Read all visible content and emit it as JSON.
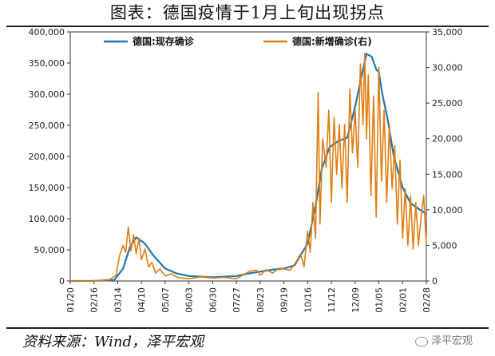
{
  "title": "图表：德国疫情于1月上旬出现拐点",
  "source": "资料来源：Wind，泽平宏观",
  "watermark": "泽平宏观",
  "colors": {
    "active": "#1f77b4",
    "new": "#e07d10",
    "axis": "#333333"
  },
  "chart_data": {
    "type": "line",
    "x_ticks": [
      "01/20",
      "02/16",
      "03/14",
      "04/10",
      "05/07",
      "06/03",
      "06/30",
      "07/27",
      "08/23",
      "09/19",
      "10/16",
      "11/12",
      "12/09",
      "01/05",
      "02/01",
      "02/28"
    ],
    "y_left": {
      "ticks": [
        0,
        50000,
        100000,
        150000,
        200000,
        250000,
        300000,
        350000,
        400000
      ],
      "tick_labels": [
        "0",
        "50,000",
        "100,000",
        "150,000",
        "200,000",
        "250,000",
        "300,000",
        "350,000",
        "400,000"
      ],
      "lim": [
        0,
        400000
      ]
    },
    "y_right": {
      "ticks": [
        0,
        5000,
        10000,
        15000,
        20000,
        25000,
        30000,
        35000
      ],
      "tick_labels": [
        "0",
        "5,000",
        "10,000",
        "15,000",
        "20,000",
        "25,000",
        "30,000",
        "35,000"
      ],
      "lim": [
        0,
        35000
      ]
    },
    "legend": {
      "placement": "top"
    },
    "series": [
      {
        "name": "德国:现存确诊",
        "axis": "left",
        "x": [
          "2020-01-20",
          "2020-02-16",
          "2020-03-10",
          "2020-03-20",
          "2020-03-28",
          "2020-04-04",
          "2020-04-14",
          "2020-04-24",
          "2020-05-07",
          "2020-05-20",
          "2020-06-03",
          "2020-06-30",
          "2020-07-27",
          "2020-08-10",
          "2020-08-23",
          "2020-09-05",
          "2020-09-19",
          "2020-10-01",
          "2020-10-16",
          "2020-10-25",
          "2020-11-01",
          "2020-11-10",
          "2020-11-20",
          "2020-11-30",
          "2020-12-09",
          "2020-12-15",
          "2020-12-22",
          "2020-12-28",
          "2021-01-02",
          "2021-01-05",
          "2021-01-09",
          "2021-01-15",
          "2021-01-22",
          "2021-02-01",
          "2021-02-10",
          "2021-02-20",
          "2021-02-28"
        ],
        "values": [
          0,
          100,
          1500,
          20000,
          55000,
          70000,
          60000,
          40000,
          20000,
          12000,
          8000,
          6000,
          8000,
          12000,
          15000,
          18000,
          20000,
          25000,
          60000,
          120000,
          180000,
          215000,
          225000,
          230000,
          280000,
          320000,
          365000,
          360000,
          340000,
          335000,
          300000,
          260000,
          200000,
          150000,
          125000,
          115000,
          108000
        ]
      },
      {
        "name": "德国:新增确诊(右)",
        "axis": "right",
        "x": [
          "2020-01-20",
          "2020-02-16",
          "2020-03-05",
          "2020-03-12",
          "2020-03-16",
          "2020-03-20",
          "2020-03-23",
          "2020-03-26",
          "2020-03-29",
          "2020-04-01",
          "2020-04-04",
          "2020-04-07",
          "2020-04-10",
          "2020-04-14",
          "2020-04-18",
          "2020-04-22",
          "2020-04-26",
          "2020-05-01",
          "2020-05-07",
          "2020-05-14",
          "2020-05-21",
          "2020-06-03",
          "2020-06-17",
          "2020-06-30",
          "2020-07-13",
          "2020-07-27",
          "2020-08-04",
          "2020-08-12",
          "2020-08-19",
          "2020-08-23",
          "2020-08-30",
          "2020-09-06",
          "2020-09-13",
          "2020-09-19",
          "2020-09-26",
          "2020-10-03",
          "2020-10-08",
          "2020-10-12",
          "2020-10-16",
          "2020-10-19",
          "2020-10-22",
          "2020-10-25",
          "2020-10-28",
          "2020-10-30",
          "2020-11-02",
          "2020-11-06",
          "2020-11-09",
          "2020-11-12",
          "2020-11-15",
          "2020-11-18",
          "2020-11-21",
          "2020-11-24",
          "2020-11-27",
          "2020-11-30",
          "2020-12-03",
          "2020-12-06",
          "2020-12-09",
          "2020-12-12",
          "2020-12-15",
          "2020-12-18",
          "2020-12-20",
          "2020-12-22",
          "2020-12-24",
          "2020-12-27",
          "2020-12-30",
          "2021-01-02",
          "2021-01-05",
          "2021-01-08",
          "2021-01-11",
          "2021-01-14",
          "2021-01-17",
          "2021-01-20",
          "2021-01-23",
          "2021-01-26",
          "2021-01-29",
          "2021-02-01",
          "2021-02-04",
          "2021-02-07",
          "2021-02-10",
          "2021-02-13",
          "2021-02-16",
          "2021-02-19",
          "2021-02-22",
          "2021-02-25",
          "2021-02-28"
        ],
        "values": [
          0,
          10,
          200,
          800,
          3500,
          5000,
          4000,
          7600,
          4200,
          6500,
          3800,
          6000,
          3000,
          4500,
          2000,
          2600,
          1100,
          1700,
          700,
          1000,
          500,
          300,
          600,
          400,
          500,
          300,
          900,
          1400,
          1500,
          800,
          1600,
          1100,
          1800,
          1700,
          1500,
          2700,
          3800,
          2000,
          7000,
          4000,
          11000,
          6000,
          26500,
          8000,
          20000,
          16000,
          24000,
          11000,
          23000,
          15000,
          22000,
          13000,
          22000,
          11000,
          27000,
          18000,
          24000,
          16000,
          30500,
          22000,
          32000,
          20000,
          29000,
          12000,
          26000,
          9000,
          30000,
          14000,
          24000,
          11000,
          22000,
          13000,
          19000,
          8000,
          17000,
          6000,
          13000,
          5000,
          12000,
          4500,
          11000,
          5000,
          9000,
          12000,
          5000
        ]
      }
    ]
  }
}
